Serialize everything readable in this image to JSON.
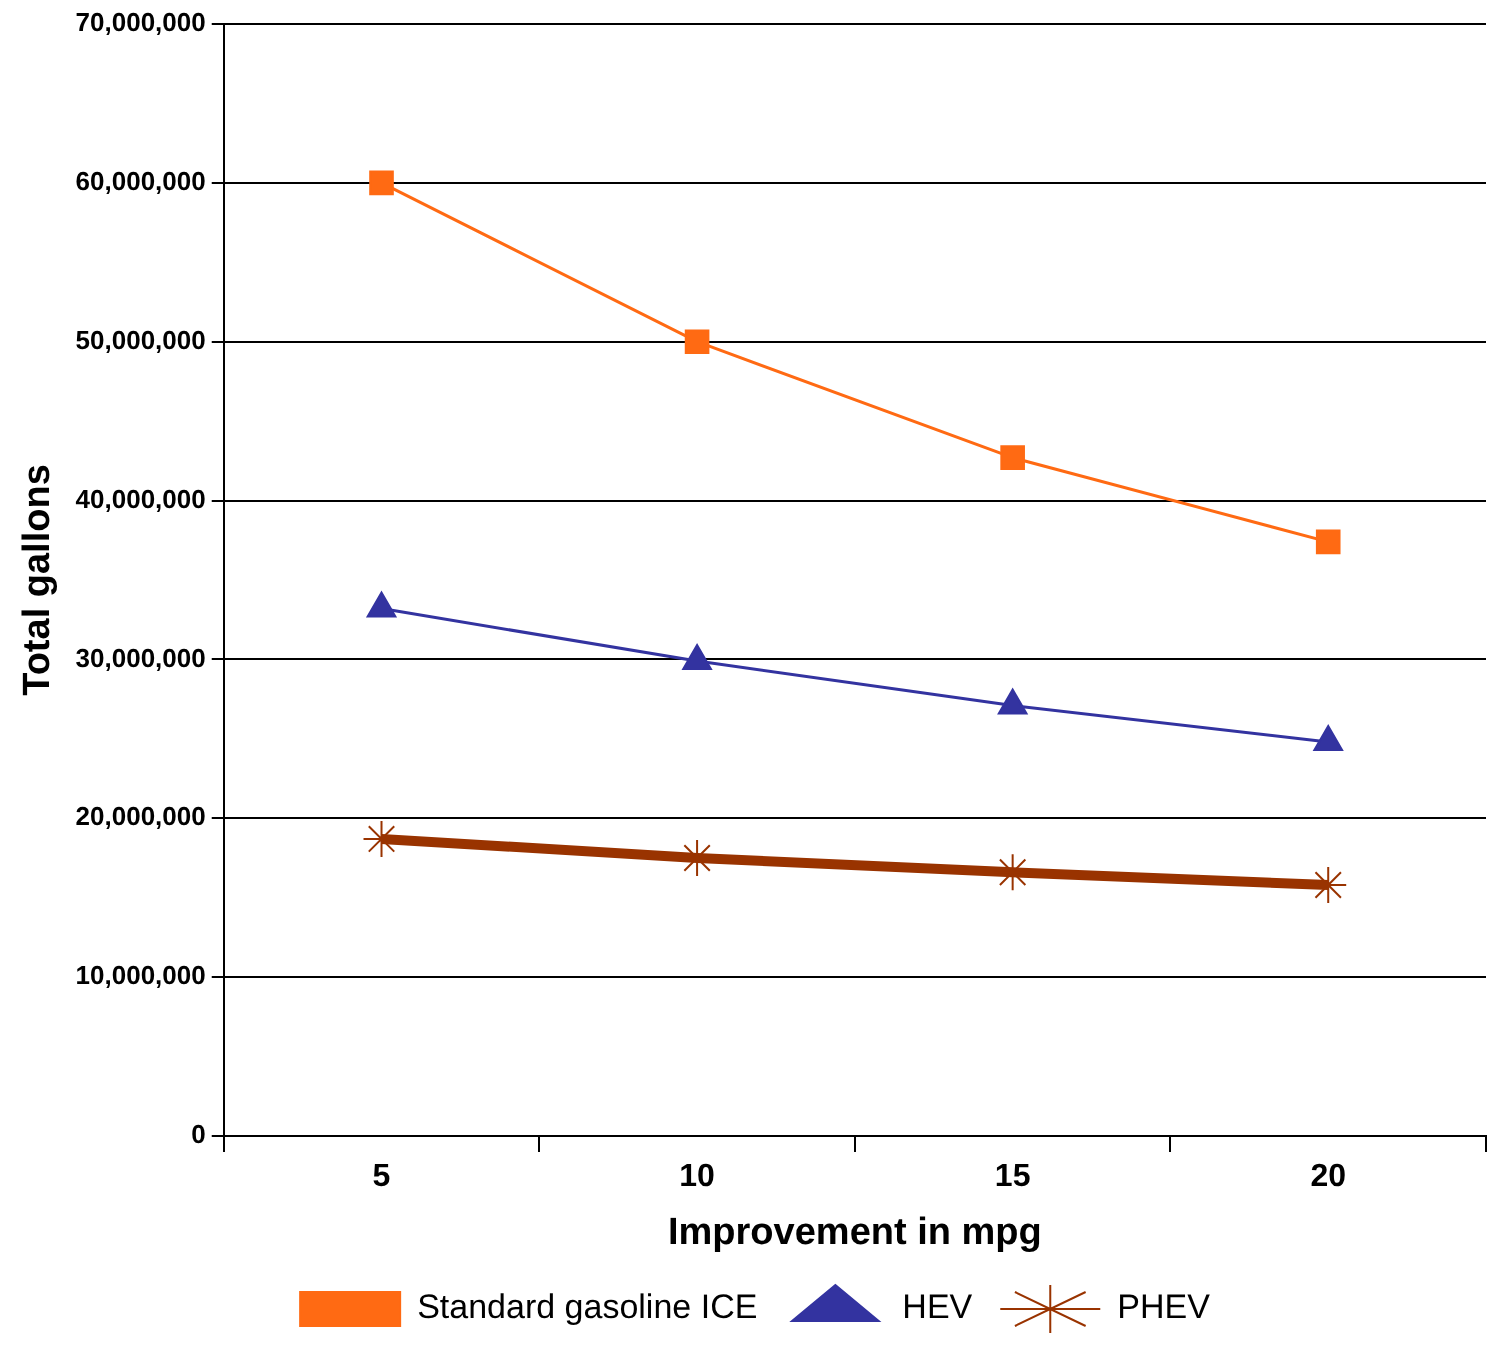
{
  "chart_data": {
    "type": "line",
    "xlabel": "Improvement in mpg",
    "ylabel": "Total gallons",
    "categories": [
      "5",
      "10",
      "15",
      "20"
    ],
    "series": [
      {
        "name": "Standard gasoline ICE",
        "color": "#ff6a13",
        "marker": "square",
        "values": [
          60000000,
          50000000,
          42700000,
          37400000
        ]
      },
      {
        "name": "HEV",
        "color": "#3333a0",
        "marker": "triangle",
        "values": [
          33200000,
          29900000,
          27100000,
          24800000
        ]
      },
      {
        "name": "PHEV",
        "color": "#993300",
        "marker": "cross",
        "values": [
          18700000,
          17500000,
          16600000,
          15800000
        ]
      }
    ],
    "ylim": [
      0,
      70000000
    ],
    "yticks": [
      0,
      {
        "value": 10000000,
        "label": "10,000,000"
      },
      {
        "value": 20000000,
        "label": "20,000,000"
      },
      {
        "value": 30000000,
        "label": "30,000,000"
      },
      {
        "value": 40000000,
        "label": "40,000,000"
      },
      {
        "value": 50000000,
        "label": "50,000,000"
      },
      {
        "value": 60000000,
        "label": "60,000,000"
      },
      {
        "value": 70000000,
        "label": "70,000,000"
      }
    ],
    "grid": "y",
    "legend": "bottom"
  }
}
